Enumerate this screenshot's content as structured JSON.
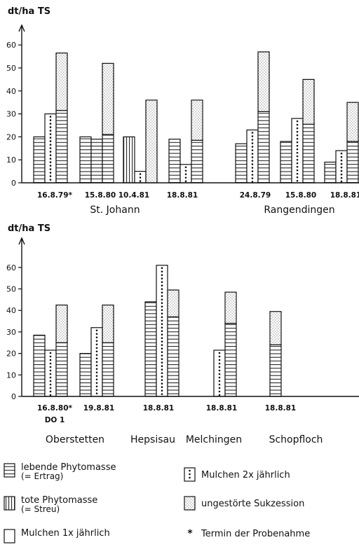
{
  "chart_data": [
    {
      "type": "bar",
      "ylabel": "dt/ha TS",
      "ylim": [
        0,
        65
      ],
      "yticks": [
        0,
        10,
        20,
        30,
        40,
        50,
        60
      ],
      "groups": [
        {
          "date": "16.8.79",
          "marker": "*",
          "site": "St. Johann",
          "bars": [
            {
              "pattern": "lebende",
              "value": 20
            },
            {
              "pattern": "mulchen2",
              "value": 30
            },
            {
              "pattern": "ungestoert",
              "value": 56.5,
              "lower": 31.5
            }
          ]
        },
        {
          "date": "15.8.80",
          "marker": "",
          "site": "St. Johann",
          "bars": [
            {
              "pattern": "lebende",
              "value": 20
            },
            {
              "pattern": "lebende",
              "value": 19
            },
            {
              "pattern": "ungestoert",
              "value": 52,
              "lower": 21
            }
          ]
        },
        {
          "date": "10.4.81",
          "marker": "",
          "site": "St. Johann",
          "bars": [
            {
              "pattern": "tote",
              "value": 20
            },
            {
              "pattern": "mulchen2",
              "value": 5
            },
            {
              "pattern": "ungestoert",
              "value": 36
            }
          ]
        },
        {
          "date": "18.8.81",
          "marker": "",
          "site": "St. Johann",
          "bars": [
            {
              "pattern": "lebende",
              "value": 19
            },
            {
              "pattern": "mulchen2",
              "value": 8
            },
            {
              "pattern": "ungestoert",
              "value": 36,
              "lower": 18.5
            }
          ]
        },
        {
          "date": "24.8.79",
          "marker": "",
          "site": "Rangendingen",
          "bars": [
            {
              "pattern": "lebende",
              "value": 17
            },
            {
              "pattern": "mulchen2",
              "value": 23
            },
            {
              "pattern": "ungestoert",
              "value": 57,
              "lower": 31
            }
          ]
        },
        {
          "date": "15.8.80",
          "marker": "",
          "site": "Rangendingen",
          "bars": [
            {
              "pattern": "lebende",
              "value": 18
            },
            {
              "pattern": "mulchen2",
              "value": 28
            },
            {
              "pattern": "ungestoert",
              "value": 45,
              "lower": 25.5
            }
          ]
        },
        {
          "date": "18.8.81",
          "marker": "",
          "site": "Rangendingen",
          "bars": [
            {
              "pattern": "lebende",
              "value": 9
            },
            {
              "pattern": "mulchen2",
              "value": 14
            },
            {
              "pattern": "ungestoert",
              "value": 35,
              "lower": 18
            }
          ]
        }
      ],
      "sites": [
        "St. Johann",
        "Rangendingen"
      ]
    },
    {
      "type": "bar",
      "ylabel": "dt/ha TS",
      "ylim": [
        0,
        65
      ],
      "yticks": [
        0,
        10,
        20,
        30,
        40,
        50,
        60
      ],
      "groups": [
        {
          "date": "16.8.80",
          "marker": "*",
          "sublabel": "DO 1",
          "site": "Oberstetten",
          "bars": [
            {
              "pattern": "lebende",
              "value": 28.5
            },
            {
              "pattern": "mulchen2",
              "value": 21.5
            },
            {
              "pattern": "ungestoert",
              "value": 42.5,
              "lower": 25
            }
          ]
        },
        {
          "date": "19.8.81",
          "marker": "",
          "site": "Oberstetten",
          "bars": [
            {
              "pattern": "lebende",
              "value": 20
            },
            {
              "pattern": "mulchen2",
              "value": 32
            },
            {
              "pattern": "ungestoert",
              "value": 42.5,
              "lower": 25
            }
          ]
        },
        {
          "date": "18.8.81",
          "marker": "",
          "site": "Hepsisau",
          "bars": [
            {
              "pattern": "lebende",
              "value": 44
            },
            {
              "pattern": "mulchen2",
              "value": 61
            },
            {
              "pattern": "ungestoert",
              "value": 49.5,
              "lower": 37
            }
          ]
        },
        {
          "date": "18.8.81",
          "marker": "",
          "site": "Melchingen",
          "bars": [
            {
              "pattern": "mulchen2",
              "value": 21.5
            },
            {
              "pattern": "ungestoert",
              "value": 48.5,
              "lower": 34
            }
          ]
        },
        {
          "date": "18.8.81",
          "marker": "",
          "site": "Schopfloch",
          "bars": [
            {
              "pattern": "ungestoert",
              "value": 39.5,
              "lower": 24
            }
          ]
        }
      ],
      "sites": [
        "Oberstetten",
        "Hepsisau",
        "Melchingen",
        "Schopfloch"
      ]
    }
  ],
  "legend": {
    "left": [
      {
        "pattern": "lebende",
        "label": "lebende Phytomasse",
        "sub": "(= Ertrag)"
      },
      {
        "pattern": "tote",
        "label": "tote Phytomasse",
        "sub": "(= Streu)"
      },
      {
        "pattern": "mulchen1",
        "label": "Mulchen 1x jährlich",
        "sub": ""
      }
    ],
    "right": [
      {
        "pattern": "mulchen2",
        "label": "Mulchen 2x jährlich"
      },
      {
        "pattern": "ungestoert",
        "label": "ungestörte Sukzession"
      },
      {
        "pattern": "asterisk",
        "marker": "*",
        "label": "Termin der Probenahme"
      }
    ]
  }
}
